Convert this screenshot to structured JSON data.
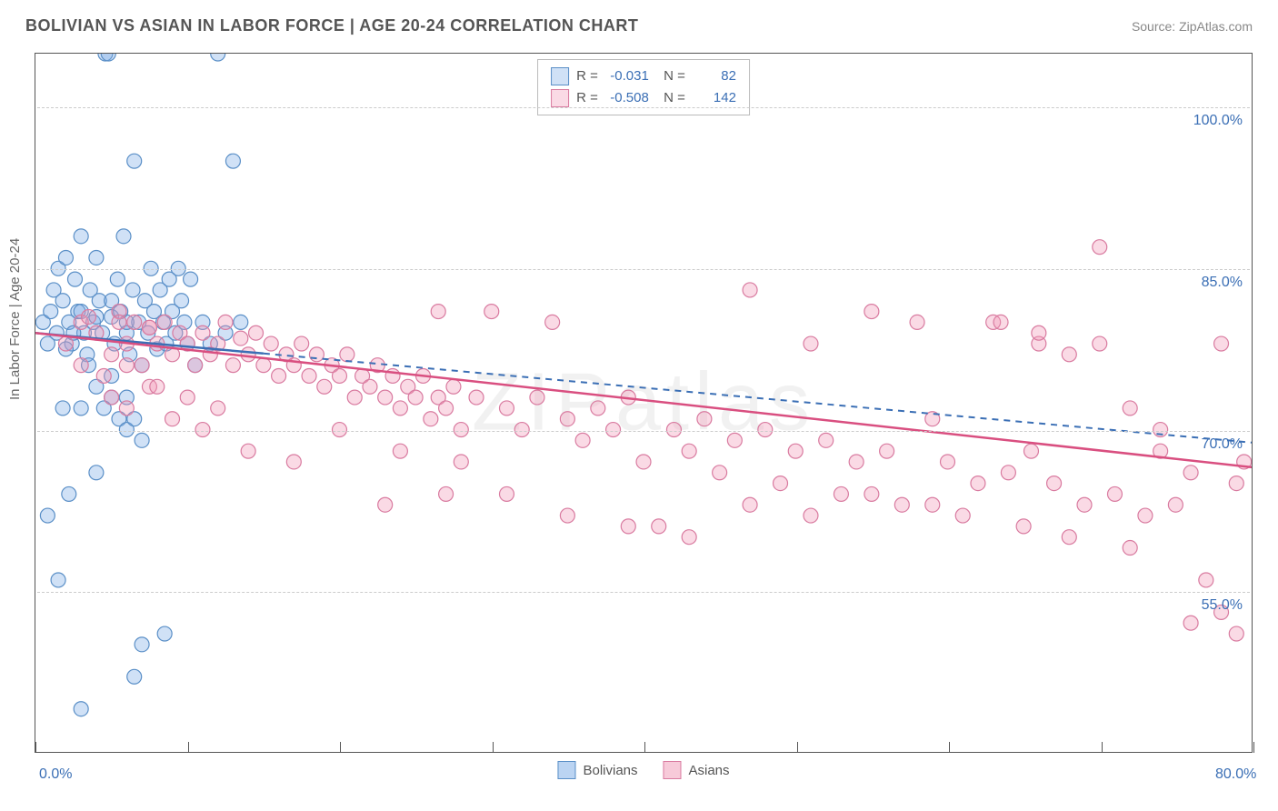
{
  "header": {
    "title": "BOLIVIAN VS ASIAN IN LABOR FORCE | AGE 20-24 CORRELATION CHART",
    "source": "Source: ZipAtlas.com"
  },
  "watermark": "ZIPatlas",
  "y_axis_label": "In Labor Force | Age 20-24",
  "chart": {
    "type": "scatter",
    "xlim": [
      0,
      80
    ],
    "ylim": [
      40,
      105
    ],
    "background_color": "#ffffff",
    "grid_color": "#cccccc",
    "border_color": "#555555",
    "x_ticks": [
      0,
      10,
      20,
      30,
      40,
      50,
      60,
      70,
      80
    ],
    "x_tick_labels": {
      "0": "0.0%",
      "80": "80.0%"
    },
    "y_ticks": [
      55,
      70,
      85,
      100
    ],
    "y_tick_labels": {
      "55": "55.0%",
      "70": "70.0%",
      "85": "85.0%",
      "100": "100.0%"
    },
    "x_label_color": "#3b6fb5",
    "y_label_color": "#3b6fb5",
    "axis_label_color": "#666666",
    "marker_radius": 8,
    "marker_stroke_width": 1.2,
    "series": [
      {
        "name": "Bolivians",
        "fill_color": "rgba(120,170,230,0.35)",
        "stroke_color": "#5a8fc7",
        "trend_color": "#3b6fb5",
        "trend_solid_end_x": 15,
        "trend_dash_start_x": 15,
        "trend": {
          "y_at_x0": 79.0,
          "y_at_xmax": 68.8
        },
        "stats": {
          "R": "-0.031",
          "N": "82"
        },
        "points": [
          [
            0.5,
            80
          ],
          [
            0.8,
            78
          ],
          [
            1.0,
            81
          ],
          [
            1.2,
            83
          ],
          [
            1.4,
            79
          ],
          [
            1.5,
            85
          ],
          [
            1.8,
            82
          ],
          [
            2.0,
            86
          ],
          [
            2.2,
            80
          ],
          [
            2.4,
            78
          ],
          [
            2.6,
            84
          ],
          [
            2.8,
            81
          ],
          [
            3.0,
            88
          ],
          [
            3.2,
            79
          ],
          [
            3.4,
            77
          ],
          [
            3.6,
            83
          ],
          [
            3.8,
            80
          ],
          [
            4.0,
            86
          ],
          [
            4.2,
            82
          ],
          [
            4.4,
            79
          ],
          [
            4.6,
            105
          ],
          [
            4.8,
            105
          ],
          [
            5.0,
            80.5
          ],
          [
            5.2,
            78
          ],
          [
            5.4,
            84
          ],
          [
            5.6,
            81
          ],
          [
            5.8,
            88
          ],
          [
            6.0,
            79
          ],
          [
            6.2,
            77
          ],
          [
            6.4,
            83
          ],
          [
            6.5,
            95
          ],
          [
            6.8,
            80
          ],
          [
            7.0,
            76
          ],
          [
            7.2,
            82
          ],
          [
            7.4,
            79
          ],
          [
            7.6,
            85
          ],
          [
            7.8,
            81
          ],
          [
            8.0,
            77.5
          ],
          [
            8.2,
            83
          ],
          [
            8.4,
            80
          ],
          [
            8.6,
            78
          ],
          [
            8.8,
            84
          ],
          [
            9.0,
            81
          ],
          [
            9.2,
            79
          ],
          [
            9.4,
            85
          ],
          [
            9.6,
            82
          ],
          [
            9.8,
            80
          ],
          [
            10.0,
            78
          ],
          [
            10.2,
            84
          ],
          [
            10.5,
            76
          ],
          [
            11.0,
            80
          ],
          [
            11.5,
            78
          ],
          [
            12.0,
            105
          ],
          [
            12.5,
            79
          ],
          [
            13.0,
            95
          ],
          [
            13.5,
            80
          ],
          [
            1.8,
            72
          ],
          [
            3.0,
            72
          ],
          [
            4.0,
            66
          ],
          [
            5.0,
            73
          ],
          [
            5.5,
            71
          ],
          [
            6.0,
            70
          ],
          [
            6.5,
            71
          ],
          [
            7.0,
            69
          ],
          [
            0.8,
            62
          ],
          [
            2.2,
            64
          ],
          [
            3.0,
            44
          ],
          [
            3.5,
            76
          ],
          [
            4.0,
            74
          ],
          [
            4.5,
            72
          ],
          [
            5.0,
            75
          ],
          [
            6.0,
            73
          ],
          [
            7.0,
            50
          ],
          [
            8.5,
            51
          ],
          [
            6.5,
            47
          ],
          [
            1.5,
            56
          ],
          [
            2.0,
            77.5
          ],
          [
            2.5,
            79
          ],
          [
            3.0,
            81
          ],
          [
            4.0,
            80.5
          ],
          [
            5.0,
            82
          ],
          [
            6.0,
            80
          ]
        ]
      },
      {
        "name": "Asians",
        "fill_color": "rgba(240,150,180,0.35)",
        "stroke_color": "#d97ba0",
        "trend_color": "#d94f80",
        "trend_solid_end_x": 80,
        "trend_dash_start_x": 80,
        "trend": {
          "y_at_x0": 79.0,
          "y_at_xmax": 66.5
        },
        "stats": {
          "R": "-0.508",
          "N": "142"
        },
        "points": [
          [
            2,
            78
          ],
          [
            3,
            80
          ],
          [
            4,
            79
          ],
          [
            5,
            77
          ],
          [
            5.5,
            81
          ],
          [
            6,
            78
          ],
          [
            6.5,
            80
          ],
          [
            7,
            76
          ],
          [
            7.5,
            79.5
          ],
          [
            8,
            78
          ],
          [
            8.5,
            80
          ],
          [
            9,
            77
          ],
          [
            9.5,
            79
          ],
          [
            10,
            78
          ],
          [
            10.5,
            76
          ],
          [
            11,
            79
          ],
          [
            11.5,
            77
          ],
          [
            12,
            78
          ],
          [
            12.5,
            80
          ],
          [
            13,
            76
          ],
          [
            13.5,
            78.5
          ],
          [
            14,
            77
          ],
          [
            14.5,
            79
          ],
          [
            15,
            76
          ],
          [
            15.5,
            78
          ],
          [
            16,
            75
          ],
          [
            16.5,
            77
          ],
          [
            17,
            76
          ],
          [
            17.5,
            78
          ],
          [
            18,
            75
          ],
          [
            18.5,
            77
          ],
          [
            19,
            74
          ],
          [
            19.5,
            76
          ],
          [
            20,
            75
          ],
          [
            20.5,
            77
          ],
          [
            21,
            73
          ],
          [
            21.5,
            75
          ],
          [
            22,
            74
          ],
          [
            22.5,
            76
          ],
          [
            23,
            73
          ],
          [
            23.5,
            75
          ],
          [
            24,
            72
          ],
          [
            24.5,
            74
          ],
          [
            25,
            73
          ],
          [
            25.5,
            75
          ],
          [
            26,
            71
          ],
          [
            26.5,
            73
          ],
          [
            27,
            72
          ],
          [
            27.5,
            74
          ],
          [
            28,
            70
          ],
          [
            29,
            73
          ],
          [
            30,
            81
          ],
          [
            31,
            72
          ],
          [
            32,
            70
          ],
          [
            33,
            73
          ],
          [
            34,
            80
          ],
          [
            35,
            71
          ],
          [
            36,
            69
          ],
          [
            37,
            72
          ],
          [
            38,
            70
          ],
          [
            39,
            73
          ],
          [
            40,
            67
          ],
          [
            41,
            61
          ],
          [
            42,
            70
          ],
          [
            43,
            68
          ],
          [
            44,
            71
          ],
          [
            45,
            66
          ],
          [
            46,
            69
          ],
          [
            47,
            83
          ],
          [
            48,
            70
          ],
          [
            49,
            65
          ],
          [
            50,
            68
          ],
          [
            51,
            78
          ],
          [
            52,
            69
          ],
          [
            53,
            64
          ],
          [
            54,
            67
          ],
          [
            55,
            81
          ],
          [
            56,
            68
          ],
          [
            57,
            63
          ],
          [
            58,
            80
          ],
          [
            59,
            71
          ],
          [
            60,
            67
          ],
          [
            61,
            62
          ],
          [
            62,
            65
          ],
          [
            63,
            80
          ],
          [
            64,
            66
          ],
          [
            65,
            61
          ],
          [
            65.5,
            68
          ],
          [
            66,
            78
          ],
          [
            67,
            65
          ],
          [
            68,
            60
          ],
          [
            69,
            63
          ],
          [
            70,
            87
          ],
          [
            71,
            64
          ],
          [
            72,
            59
          ],
          [
            73,
            62
          ],
          [
            74,
            68
          ],
          [
            75,
            63
          ],
          [
            76,
            52
          ],
          [
            77,
            56
          ],
          [
            78,
            53
          ],
          [
            79,
            51
          ],
          [
            79.5,
            67
          ],
          [
            23,
            63
          ],
          [
            27,
            64
          ],
          [
            31,
            64
          ],
          [
            35,
            62
          ],
          [
            39,
            61
          ],
          [
            43,
            60
          ],
          [
            47,
            63
          ],
          [
            51,
            62
          ],
          [
            55,
            64
          ],
          [
            59,
            63
          ],
          [
            11,
            70
          ],
          [
            14,
            68
          ],
          [
            17,
            67
          ],
          [
            20,
            70
          ],
          [
            24,
            68
          ],
          [
            28,
            67
          ],
          [
            6,
            72
          ],
          [
            9,
            71
          ],
          [
            12,
            72
          ],
          [
            3,
            76
          ],
          [
            4.5,
            75
          ],
          [
            6,
            76
          ],
          [
            7.5,
            74
          ],
          [
            5,
            73
          ],
          [
            8,
            74
          ],
          [
            10,
            73
          ],
          [
            3.5,
            80.5
          ],
          [
            5.5,
            80
          ],
          [
            7.5,
            79.5
          ],
          [
            26.5,
            81
          ],
          [
            63.5,
            80
          ],
          [
            66,
            79
          ],
          [
            68,
            77
          ],
          [
            70,
            78
          ],
          [
            72,
            72
          ],
          [
            74,
            70
          ],
          [
            76,
            66
          ],
          [
            78,
            78
          ],
          [
            79,
            65
          ]
        ]
      }
    ]
  },
  "legend_bottom": [
    {
      "label": "Bolivians",
      "swatch_fill": "rgba(120,170,230,0.5)",
      "swatch_border": "#5a8fc7"
    },
    {
      "label": "Asians",
      "swatch_fill": "rgba(240,150,180,0.5)",
      "swatch_border": "#d97ba0"
    }
  ]
}
